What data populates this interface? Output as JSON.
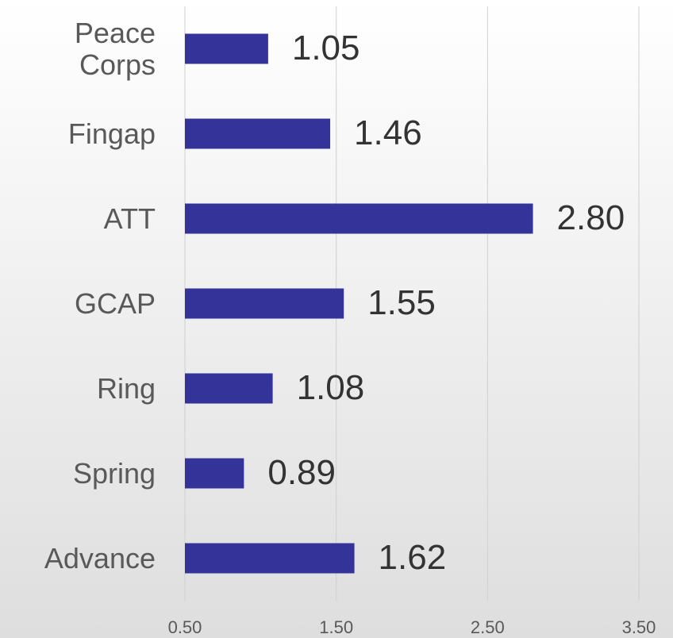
{
  "chart_data": {
    "type": "bar",
    "orientation": "horizontal",
    "categories": [
      "Peace Corps",
      "Fingap",
      "ATT",
      "GCAP",
      "Ring",
      "Spring",
      "Advance"
    ],
    "values": [
      1.05,
      1.46,
      2.8,
      1.55,
      1.08,
      0.89,
      1.62
    ],
    "value_labels": [
      "1.05",
      "1.46",
      "2.80",
      "1.55",
      "1.08",
      "0.89",
      "1.62"
    ],
    "color": "#333399",
    "xlim": [
      0.5,
      3.5
    ],
    "xticks": [
      {
        "value": 0.5,
        "label": "0.50"
      },
      {
        "value": 1.5,
        "label": "1.50"
      },
      {
        "value": 2.5,
        "label": "2.50"
      },
      {
        "value": 3.5,
        "label": "3.50"
      }
    ],
    "grid": true
  }
}
